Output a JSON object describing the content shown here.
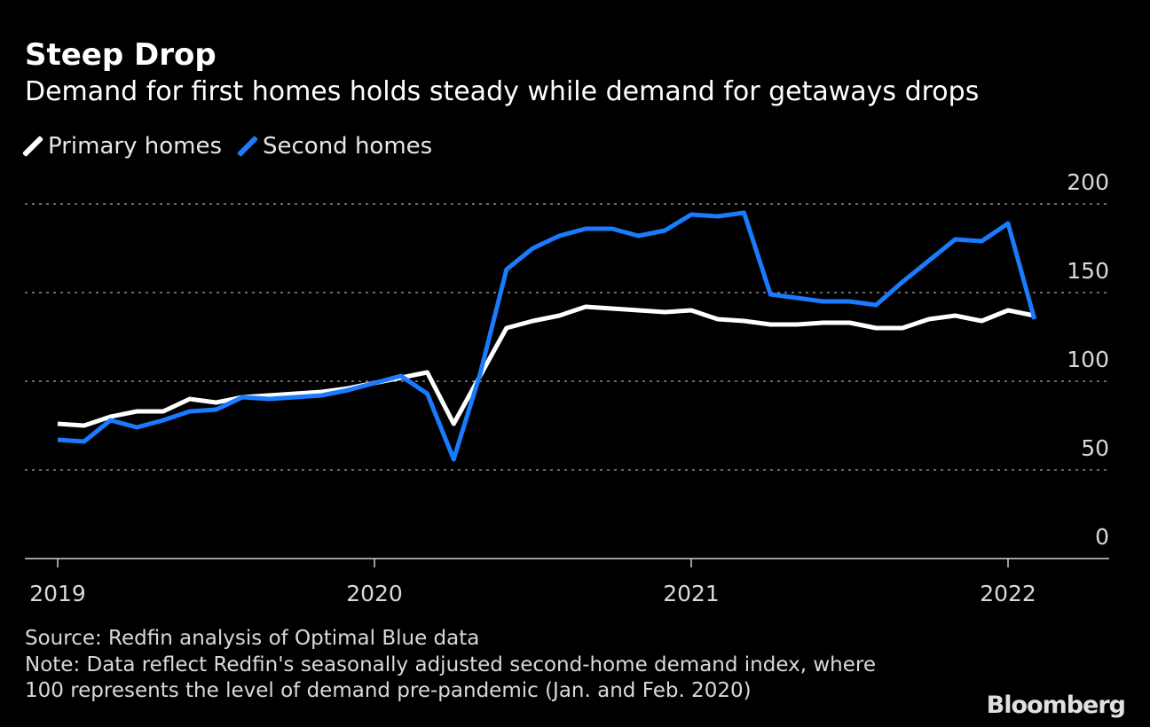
{
  "chart_data": {
    "type": "line",
    "title": "Steep Drop",
    "subtitle": "Demand for first homes holds steady while demand for getaways drops",
    "x": [
      "2019-01",
      "2019-02",
      "2019-03",
      "2019-04",
      "2019-05",
      "2019-06",
      "2019-07",
      "2019-08",
      "2019-09",
      "2019-10",
      "2019-11",
      "2019-12",
      "2020-01",
      "2020-02",
      "2020-03",
      "2020-04",
      "2020-05",
      "2020-06",
      "2020-07",
      "2020-08",
      "2020-09",
      "2020-10",
      "2020-11",
      "2020-12",
      "2021-01",
      "2021-02",
      "2021-03",
      "2021-04",
      "2021-05",
      "2021-06",
      "2021-07",
      "2021-08",
      "2021-09",
      "2021-10",
      "2021-11",
      "2021-12",
      "2022-01",
      "2022-02"
    ],
    "series": [
      {
        "name": "Primary homes",
        "color": "#ffffff",
        "values": [
          76,
          75,
          80,
          83,
          83,
          90,
          88,
          91,
          92,
          93,
          94,
          96,
          99,
          102,
          105,
          76,
          103,
          130,
          134,
          137,
          142,
          141,
          140,
          139,
          140,
          135,
          134,
          132,
          132,
          133,
          133,
          130,
          130,
          135,
          137,
          134,
          140,
          137
        ]
      },
      {
        "name": "Second homes",
        "color": "#1a7bff",
        "values": [
          67,
          66,
          78,
          74,
          78,
          83,
          84,
          91,
          90,
          91,
          92,
          95,
          99,
          103,
          93,
          56,
          104,
          163,
          175,
          182,
          186,
          186,
          182,
          185,
          194,
          193,
          195,
          149,
          147,
          145,
          145,
          143,
          156,
          168,
          180,
          179,
          189,
          135
        ]
      }
    ],
    "xticks": [
      "2019",
      "2020",
      "2021",
      "2022"
    ],
    "yticks": [
      "0",
      "50",
      "100",
      "150",
      "200"
    ],
    "ylim": [
      0,
      200
    ],
    "xlabel": "",
    "ylabel": "",
    "grid": "horizontal dotted",
    "legend": "top-left"
  },
  "footer": {
    "source": "Source: Redfin analysis of Optimal Blue data",
    "note_line1": "Note: Data reflect Redfin's seasonally adjusted second-home demand index, where",
    "note_line2": "100 represents the level of demand pre-pandemic (Jan. and Feb. 2020)"
  },
  "logo": "Bloomberg"
}
